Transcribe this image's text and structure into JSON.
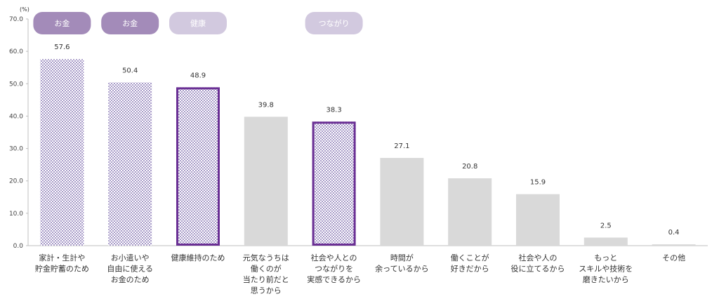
{
  "chart_data": {
    "type": "bar",
    "unit_label": "(%)",
    "ylim": [
      0,
      70
    ],
    "yticks": [
      "0.0",
      "10.0",
      "20.0",
      "30.0",
      "40.0",
      "50.0",
      "60.0",
      "70.0"
    ],
    "categories": [
      [
        "家計・生計や",
        "貯金貯蓄のため"
      ],
      [
        "お小遣いや",
        "自由に使える",
        "お金のため"
      ],
      [
        "健康維持のため"
      ],
      [
        "元気なうちは",
        "働くのが",
        "当たり前だと",
        "思うから"
      ],
      [
        "社会や人との",
        "つながりを",
        "実感できるから"
      ],
      [
        "時間が",
        "余っているから"
      ],
      [
        "働くことが",
        "好きだから"
      ],
      [
        "社会や人の",
        "役に立てるから"
      ],
      [
        "もっと",
        "スキルや技術を",
        "磨きたいから"
      ],
      [
        "その他"
      ]
    ],
    "values": [
      57.6,
      50.4,
      48.9,
      39.8,
      38.3,
      27.1,
      20.8,
      15.9,
      2.5,
      0.4
    ],
    "value_labels": [
      "57.6",
      "50.4",
      "48.9",
      "39.8",
      "38.3",
      "27.1",
      "20.8",
      "15.9",
      "2.5",
      "0.4"
    ],
    "styles": [
      "checker",
      "checker",
      "checker-outlined",
      "plain",
      "checker-outlined",
      "plain",
      "plain",
      "plain",
      "plain",
      "plain"
    ],
    "badges": [
      {
        "label": "お金",
        "bar": 0,
        "tone": "dark"
      },
      {
        "label": "お金",
        "bar": 1,
        "tone": "dark"
      },
      {
        "label": "健康",
        "bar": 2,
        "tone": "light"
      },
      {
        "label": "つながり",
        "bar": 4,
        "tone": "light"
      }
    ],
    "colors": {
      "plain": "#d9d9d9",
      "checker": "#a79ac8",
      "outline": "#6a2f94",
      "badge_dark": "#a38bb9",
      "badge_light": "#d2c9df",
      "axis": "#bfbfbf"
    },
    "grid": false
  }
}
